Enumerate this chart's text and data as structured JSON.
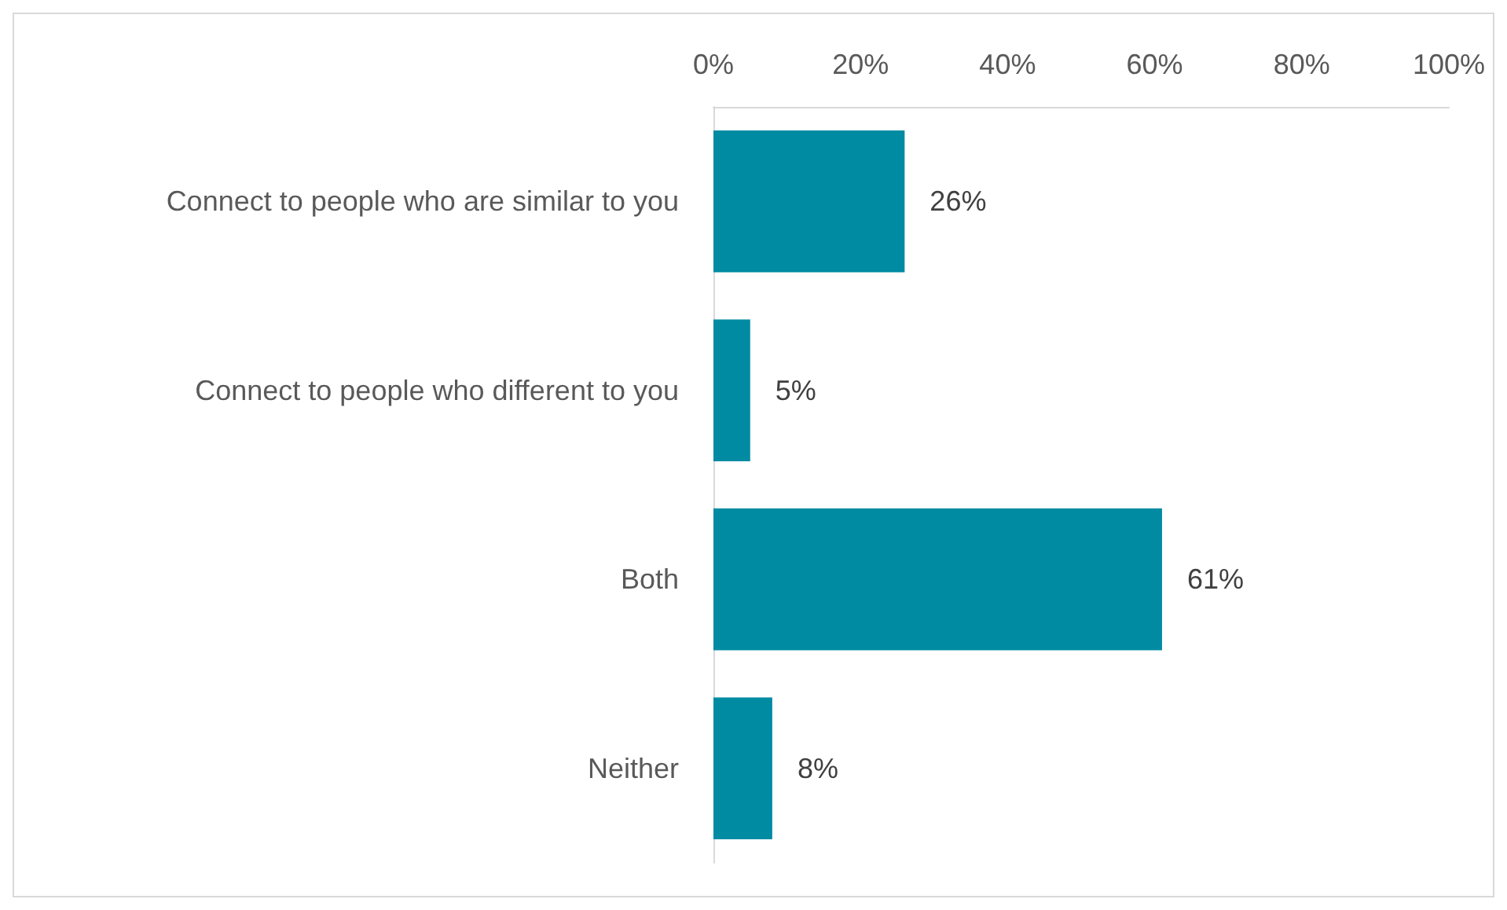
{
  "chart_data": {
    "type": "bar",
    "orientation": "horizontal",
    "categories": [
      "Connect to people who are similar to you",
      "Connect to people who different to you",
      "Both",
      "Neither"
    ],
    "values": [
      26,
      5,
      61,
      8
    ],
    "value_labels": [
      "26%",
      "5%",
      "61%",
      "8%"
    ],
    "color": "#008ba3",
    "xlim": [
      0,
      100
    ],
    "xticks": [
      {
        "value": 0,
        "label": "0%"
      },
      {
        "value": 20,
        "label": "20%"
      },
      {
        "value": 40,
        "label": "40%"
      },
      {
        "value": 60,
        "label": "60%"
      },
      {
        "value": 80,
        "label": "80%"
      },
      {
        "value": 100,
        "label": "100%"
      }
    ],
    "grid": false
  }
}
